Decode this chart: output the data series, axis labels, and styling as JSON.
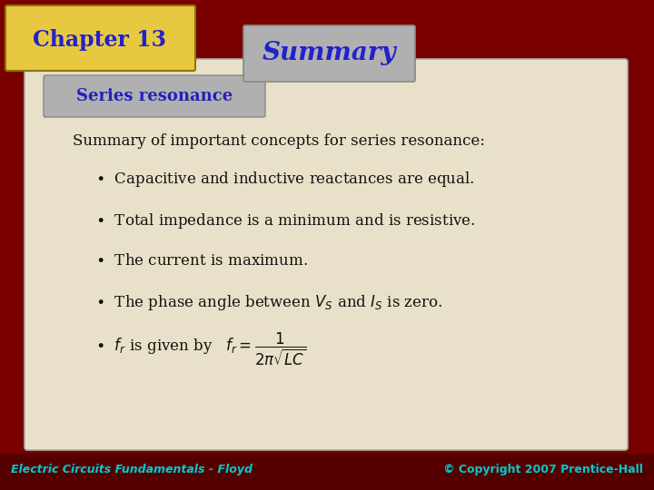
{
  "title": "Summary",
  "chapter": "Chapter 13",
  "section": "Series resonance",
  "summary_line": "Summary of important concepts for series resonance:",
  "footer_left": "Electric Circuits Fundamentals - Floyd",
  "footer_right": "© Copyright 2007 Prentice-Hall",
  "bg_dark_red": "#7A0000",
  "bg_card": "#E8E0C8",
  "chapter_box_color_top": "#E8C840",
  "chapter_box_color_bot": "#B08000",
  "summary_box_color": "#B0B0B0",
  "section_box_color": "#B0B0B0",
  "title_color": "#2222CC",
  "chapter_text_color": "#2222CC",
  "section_text_color": "#2222BB",
  "body_text_color": "#111111",
  "footer_text_color": "#00CCCC"
}
